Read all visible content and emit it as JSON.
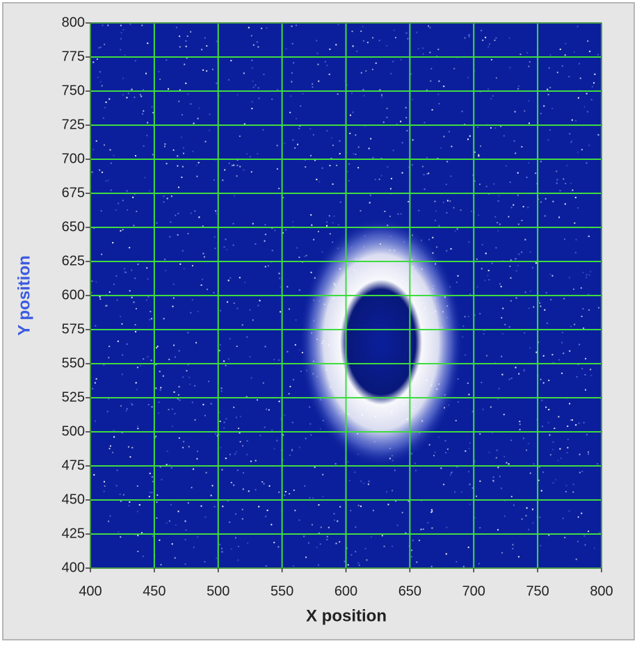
{
  "chart_data": {
    "type": "image",
    "x_label": "X position",
    "y_label": "Y position",
    "xlim": [
      400,
      800
    ],
    "ylim": [
      400,
      800
    ],
    "xticks": [
      400,
      450,
      500,
      550,
      600,
      650,
      700,
      750,
      800
    ],
    "yticks": [
      400,
      425,
      450,
      475,
      500,
      525,
      550,
      575,
      600,
      625,
      650,
      675,
      700,
      725,
      750,
      775,
      800
    ],
    "grid": true,
    "grid_color": "#3fdc3f",
    "background_color": "#0b1f9c",
    "y_label_color": "#3d5be0"
  }
}
